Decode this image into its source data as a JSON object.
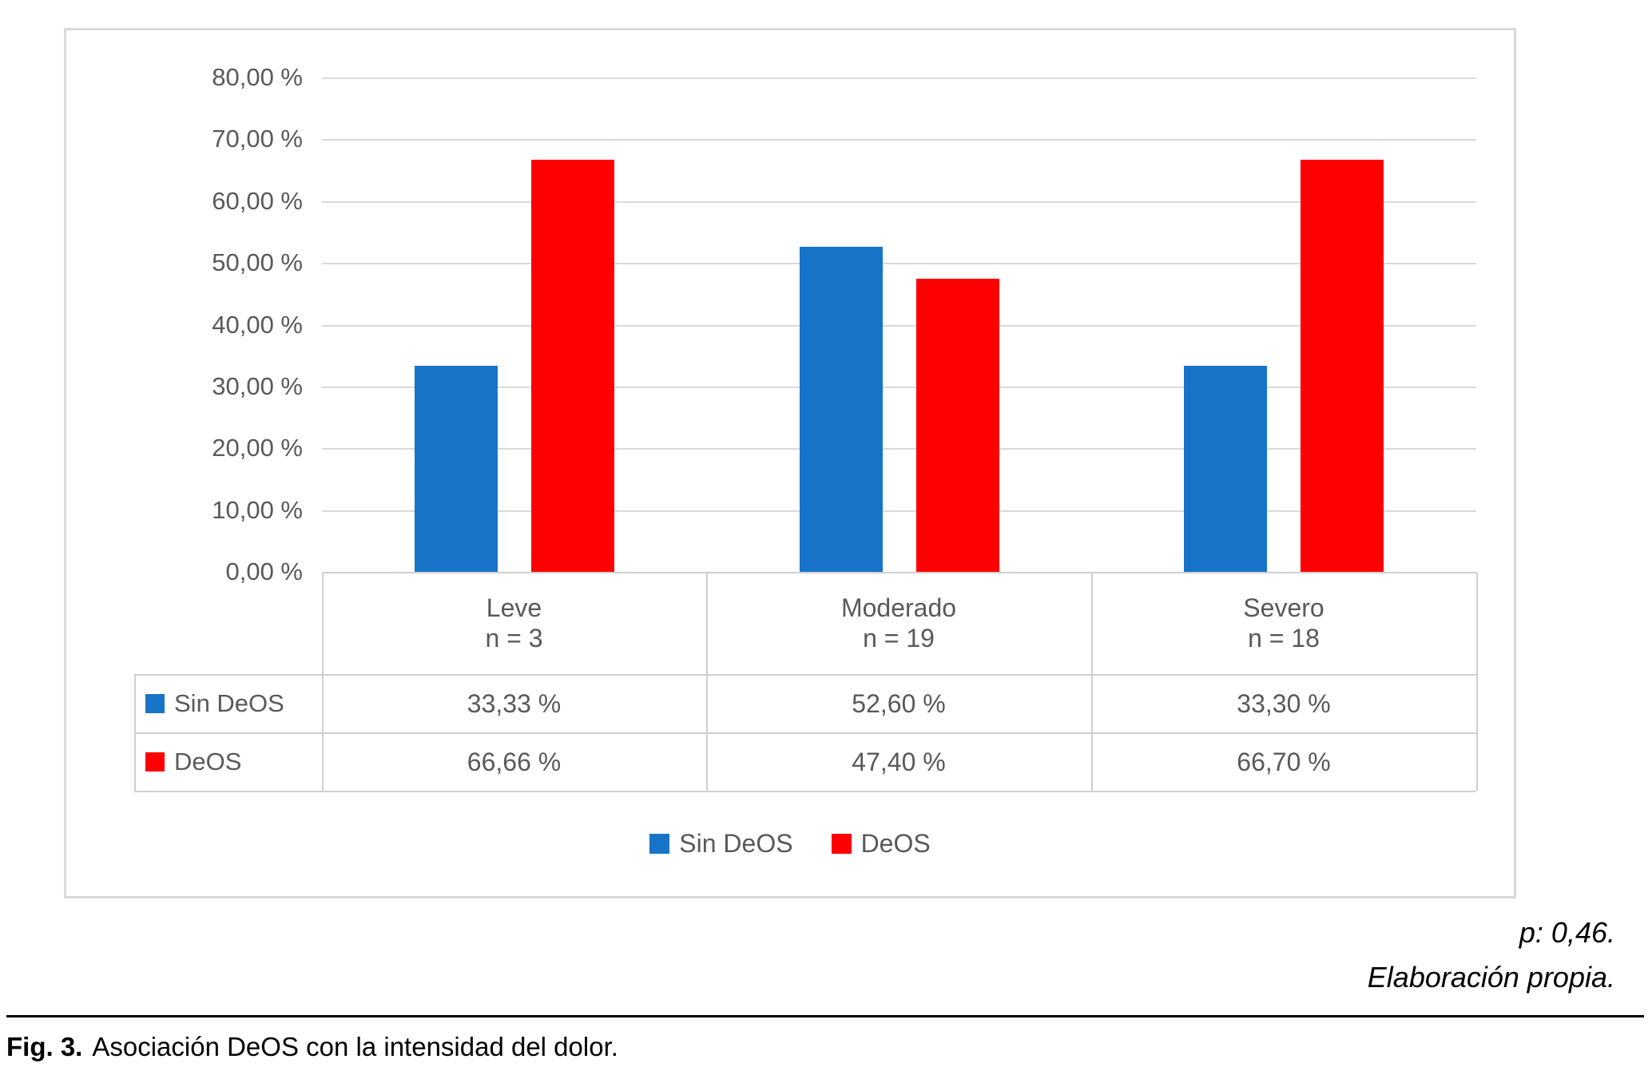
{
  "chart_data": {
    "type": "bar",
    "title": "",
    "categories": [
      "Leve",
      "Moderado",
      "Severo"
    ],
    "category_sublabels": [
      "n = 3",
      "n = 19",
      "n = 18"
    ],
    "series": [
      {
        "name": "Sin DeOS",
        "color": "#1774c8",
        "values": [
          33.33,
          52.6,
          33.3
        ],
        "value_labels": [
          "33,33 %",
          "52,60 %",
          "33,30 %"
        ]
      },
      {
        "name": "DeOS",
        "color": "#ff0000",
        "values": [
          66.66,
          47.4,
          66.7
        ],
        "value_labels": [
          "66,66 %",
          "47,40 %",
          "66,70 %"
        ]
      }
    ],
    "y_axis": {
      "min": 0,
      "max": 80,
      "step": 10,
      "tick_labels": [
        "0,00 %",
        "10,00 %",
        "20,00 %",
        "30,00 %",
        "40,00 %",
        "50,00 %",
        "60,00 %",
        "70,00 %",
        "80,00 %"
      ]
    },
    "grid": true,
    "legend_position": "bottom",
    "data_table_shown": true,
    "colors": {
      "grid": "#d9d9d9",
      "table_border": "#cfcfcf",
      "text": "#595959"
    }
  },
  "legend": {
    "items": [
      {
        "label": "Sin DeOS",
        "color": "#1774c8"
      },
      {
        "label": "DeOS",
        "color": "#ff0000"
      }
    ]
  },
  "notes": {
    "p_value": "p: 0,46.",
    "source": "Elaboración propia."
  },
  "caption": {
    "prefix": "Fig. 3.",
    "text": "Asociación DeOS con la intensidad del dolor."
  }
}
